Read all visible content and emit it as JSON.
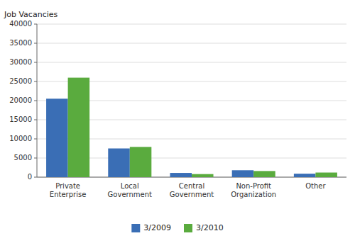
{
  "chart_data": {
    "type": "bar",
    "ylabel": "Job Vacancies",
    "categories": [
      "Private\nEnterprise",
      "Local\nGovernment",
      "Central\nGovernment",
      "Non-Profit\nOrganization",
      "Other"
    ],
    "series": [
      {
        "name": "3/2009",
        "color": "#3a6eb5",
        "values": [
          20500,
          7500,
          1100,
          1800,
          900
        ]
      },
      {
        "name": "3/2010",
        "color": "#5aab3e",
        "values": [
          26000,
          7900,
          800,
          1600,
          1200
        ]
      }
    ],
    "ylim": [
      0,
      40000
    ],
    "yticks": [
      0,
      5000,
      10000,
      15000,
      20000,
      25000,
      30000,
      35000,
      40000
    ],
    "grid": true,
    "legend": "bottom"
  }
}
